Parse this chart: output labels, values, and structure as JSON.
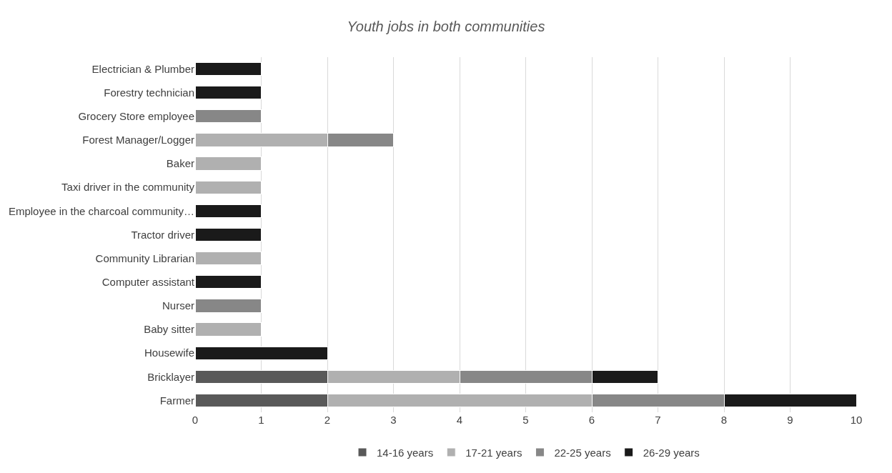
{
  "chart_data": {
    "type": "bar",
    "orientation": "horizontal",
    "stacked": true,
    "title": "Youth jobs in both communities",
    "categories": [
      "Electrician & Plumber",
      "Forestry technician",
      "Grocery Store employee",
      "Forest Manager/Logger",
      "Baker",
      "Taxi driver in the community",
      "Employee in the charcoal community…",
      "Tractor driver",
      "Community Librarian",
      "Computer assistant",
      "Nurser",
      "Baby sitter",
      "Housewife",
      "Bricklayer",
      "Farmer"
    ],
    "series": [
      {
        "name": "14-16 years",
        "color": "#595959",
        "values": [
          null,
          null,
          null,
          null,
          null,
          null,
          null,
          null,
          null,
          null,
          null,
          null,
          null,
          2,
          2
        ]
      },
      {
        "name": "17-21 years",
        "color": "#b0b0b0",
        "values": [
          null,
          null,
          null,
          2,
          1,
          1,
          null,
          null,
          1,
          null,
          null,
          1,
          null,
          2,
          4
        ]
      },
      {
        "name": "22-25 years",
        "color": "#878787",
        "values": [
          null,
          null,
          1,
          1,
          null,
          null,
          null,
          null,
          null,
          null,
          1,
          null,
          null,
          2,
          2
        ]
      },
      {
        "name": "26-29 years",
        "color": "#1a1a1a",
        "values": [
          1,
          1,
          null,
          null,
          null,
          null,
          1,
          1,
          null,
          1,
          null,
          null,
          2,
          1,
          2
        ]
      }
    ],
    "xlim": [
      0,
      10
    ],
    "xticks": [
      0,
      1,
      2,
      3,
      4,
      5,
      6,
      7,
      8,
      9,
      10
    ],
    "grid": "x",
    "legend": "bottom"
  }
}
